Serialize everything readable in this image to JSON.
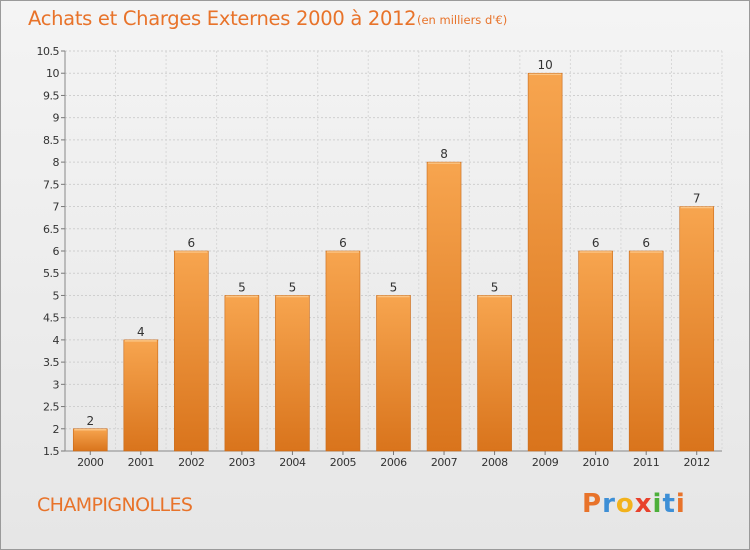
{
  "title": "Achats et Charges Externes 2000 à 2012",
  "subtitle": "(en milliers d'€)",
  "commune": "CHAMPIGNOLLES",
  "brand": {
    "letters": [
      "P",
      "r",
      "o",
      "x",
      "i",
      "t",
      "i"
    ],
    "colors": [
      "#e8732a",
      "#3d8fd6",
      "#f2b21c",
      "#e8412c",
      "#4caf3a",
      "#3d8fd6",
      "#e8732a"
    ]
  },
  "colors": {
    "bar_top": "#f7a54f",
    "bar_bottom": "#d9741c",
    "bar_edge": "#c86a1a",
    "accent": "#e8732a"
  },
  "chart_data": {
    "type": "bar",
    "title": "Achats et Charges Externes 2000 à 2012",
    "subtitle": "(en milliers d'€)",
    "categories": [
      "2000",
      "2001",
      "2002",
      "2003",
      "2004",
      "2005",
      "2006",
      "2007",
      "2008",
      "2009",
      "2010",
      "2011",
      "2012"
    ],
    "values": [
      2,
      4,
      6,
      5,
      5,
      6,
      5,
      8,
      5,
      10,
      6,
      6,
      7
    ],
    "ylim": [
      1.5,
      10.5
    ],
    "yticks": [
      "1.5",
      "2",
      "2.5",
      "3",
      "3.5",
      "4",
      "4.5",
      "5",
      "5.5",
      "6",
      "6.5",
      "7",
      "7.5",
      "8",
      "8.5",
      "9",
      "9.5",
      "10",
      "10.5"
    ],
    "grid": true,
    "xlabel": "",
    "ylabel": ""
  }
}
